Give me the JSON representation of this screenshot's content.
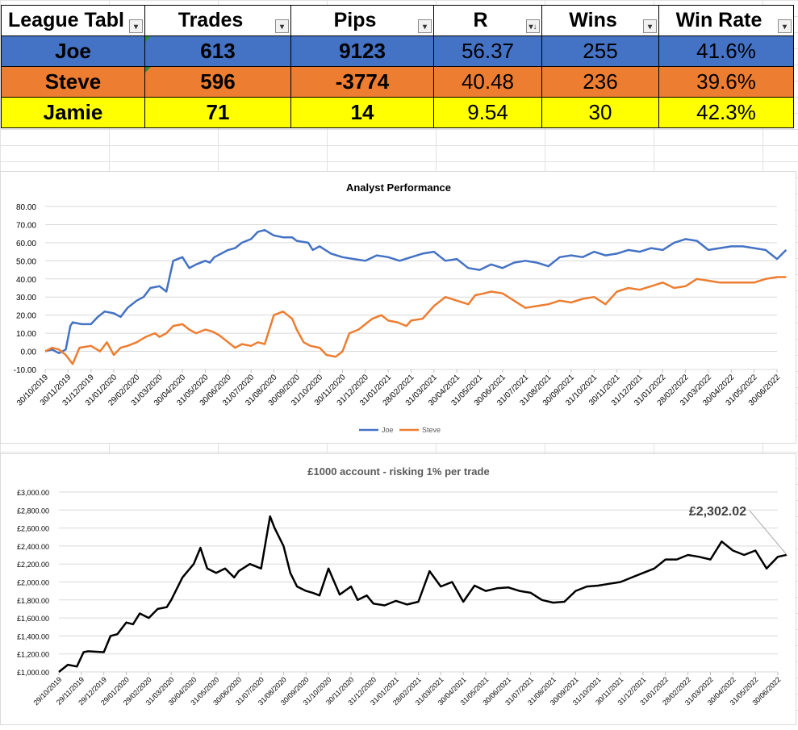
{
  "league_table": {
    "headers": [
      "League Tabl",
      "Trades",
      "Pips",
      "R",
      "Wins",
      "Win Rate"
    ],
    "rows": [
      {
        "name": "Joe",
        "trades": "613",
        "pips": "9123",
        "r": "56.37",
        "wins": "255",
        "win_rate": "41.6%"
      },
      {
        "name": "Steve",
        "trades": "596",
        "pips": "-3774",
        "r": "40.48",
        "wins": "236",
        "win_rate": "39.6%"
      },
      {
        "name": "Jamie",
        "trades": "71",
        "pips": "14",
        "r": "9.54",
        "wins": "30",
        "win_rate": "42.3%"
      }
    ]
  },
  "icons": [
    "filter-dropdown-icon",
    "sort-descending-icon",
    "green-triangle-icon"
  ],
  "colors": {
    "joe": "#4472c4",
    "steve": "#ed7d31",
    "jamie": "#ffff00",
    "account_line": "#000000"
  },
  "chart_data": [
    {
      "type": "line",
      "title": "Analyst Performance",
      "xlabel": "",
      "ylabel": "",
      "ylim": [
        -10,
        80
      ],
      "yticks": [
        "80.00",
        "70.00",
        "60.00",
        "50.00",
        "40.00",
        "30.00",
        "20.00",
        "10.00",
        "0.00",
        "-10.00"
      ],
      "x_tick_labels": [
        "30/10/2019",
        "30/11/2019",
        "31/12/2019",
        "31/01/2020",
        "29/02/2020",
        "31/03/2020",
        "30/04/2020",
        "31/05/2020",
        "30/06/2020",
        "31/07/2020",
        "31/08/2020",
        "30/09/2020",
        "31/10/2020",
        "30/11/2020",
        "31/12/2020",
        "31/01/2021",
        "28/02/2021",
        "31/03/2021",
        "30/04/2021",
        "31/05/2021",
        "30/06/2021",
        "31/07/2021",
        "31/08/2021",
        "30/09/2021",
        "31/10/2021",
        "30/11/2021",
        "31/12/2021",
        "31/01/2022",
        "28/02/2022",
        "31/03/2022",
        "30/04/2022",
        "31/05/2022",
        "30/06/2022"
      ],
      "grid": true,
      "legend": "bottom",
      "series": [
        {
          "name": "Joe",
          "color": "#4472c4",
          "x": [
            0,
            0.3,
            0.6,
            0.9,
            1.1,
            1.2,
            1.6,
            2,
            2.3,
            2.6,
            3,
            3.3,
            3.6,
            4,
            4.3,
            4.6,
            5,
            5.3,
            5.6,
            6,
            6.3,
            6.6,
            7,
            7.2,
            7.4,
            7.7,
            8,
            8.3,
            8.6,
            9,
            9.3,
            9.6,
            10,
            10.4,
            10.8,
            11,
            11.5,
            11.7,
            12,
            12.5,
            13,
            13.5,
            14,
            14.5,
            15,
            15.5,
            16,
            16.5,
            17,
            17.5,
            18,
            18.5,
            19,
            19.5,
            20,
            20.5,
            21,
            21.5,
            22,
            22.5,
            23,
            23.5,
            24,
            24.5,
            25,
            25.5,
            26,
            26.5,
            27,
            27.5,
            28,
            28.5,
            29,
            29.5,
            30,
            30.5,
            31,
            31.5,
            32,
            32.4
          ],
          "y": [
            0,
            1,
            -1,
            1,
            14,
            16,
            15,
            15,
            19,
            22,
            21,
            19,
            24,
            28,
            30,
            35,
            36,
            33,
            50,
            52,
            46,
            48,
            50,
            49,
            52,
            54,
            56,
            57,
            60,
            62,
            66,
            67,
            64,
            63,
            63,
            61,
            60,
            56,
            58,
            54,
            52,
            51,
            50,
            53,
            52,
            50,
            52,
            54,
            55,
            50,
            51,
            46,
            45,
            48,
            46,
            49,
            50,
            49,
            47,
            52,
            53,
            52,
            55,
            53,
            54,
            56,
            55,
            57,
            56,
            60,
            62,
            61,
            56,
            57,
            58,
            58,
            57,
            56,
            51,
            56
          ]
        },
        {
          "name": "Steve",
          "color": "#ed7d31",
          "x": [
            0,
            0.3,
            0.6,
            0.9,
            1.2,
            1.5,
            2,
            2.4,
            2.7,
            3,
            3.3,
            3.6,
            4,
            4.4,
            4.8,
            5,
            5.3,
            5.6,
            6,
            6.3,
            6.6,
            7,
            7.3,
            7.6,
            8,
            8.3,
            8.6,
            9,
            9.3,
            9.6,
            10,
            10.4,
            10.8,
            11,
            11.3,
            11.6,
            12,
            12.3,
            12.7,
            13,
            13.3,
            13.7,
            14,
            14.3,
            14.7,
            15,
            15.4,
            15.8,
            16,
            16.5,
            17,
            17.5,
            18,
            18.5,
            18.8,
            19.2,
            19.5,
            20,
            20.5,
            21,
            21.5,
            22,
            22.5,
            23,
            23.5,
            24,
            24.5,
            25,
            25.5,
            26,
            26.5,
            27,
            27.5,
            28,
            28.5,
            29,
            29.5,
            30,
            30.5,
            31,
            31.5,
            32,
            32.4
          ],
          "y": [
            0,
            2,
            1,
            -2,
            -7,
            2,
            3,
            0,
            5,
            -2,
            2,
            3,
            5,
            8,
            10,
            8,
            10,
            14,
            15,
            12,
            10,
            12,
            11,
            9,
            5,
            2,
            4,
            3,
            5,
            4,
            20,
            22,
            18,
            12,
            5,
            3,
            2,
            -2,
            -3,
            0,
            10,
            12,
            15,
            18,
            20,
            17,
            16,
            14,
            17,
            18,
            25,
            30,
            28,
            26,
            31,
            32,
            33,
            32,
            28,
            24,
            25,
            26,
            28,
            27,
            29,
            30,
            26,
            33,
            35,
            34,
            36,
            38,
            35,
            36,
            40,
            39,
            38,
            38,
            38,
            38,
            40,
            41,
            41
          ]
        }
      ]
    },
    {
      "type": "line",
      "title": "£1000 account - risking 1% per trade",
      "xlabel": "",
      "ylabel": "",
      "ylim": [
        1000,
        3000
      ],
      "yticks": [
        "£3,000.00",
        "£2,800.00",
        "£2,600.00",
        "£2,400.00",
        "£2,200.00",
        "£2,000.00",
        "£1,800.00",
        "£1,600.00",
        "£1,400.00",
        "£1,200.00",
        "£1,000.00"
      ],
      "x_tick_labels": [
        "29/10/2019",
        "29/11/2019",
        "29/12/2019",
        "29/01/2020",
        "29/02/2020",
        "31/03/2020",
        "30/04/2020",
        "31/05/2020",
        "30/06/2020",
        "31/07/2020",
        "31/08/2020",
        "30/09/2020",
        "31/10/2020",
        "30/11/2020",
        "31/12/2020",
        "31/01/2021",
        "28/02/2021",
        "31/03/2021",
        "30/04/2021",
        "31/05/2021",
        "30/06/2021",
        "31/07/2021",
        "31/08/2021",
        "30/09/2021",
        "31/10/2021",
        "30/11/2021",
        "31/12/2021",
        "31/01/2022",
        "28/02/2022",
        "31/03/2022",
        "30/04/2022",
        "31/05/2022",
        "30/06/2022"
      ],
      "grid": true,
      "annotation": "£2,302.02",
      "series": [
        {
          "name": "",
          "color": "#000000",
          "x": [
            0,
            0.4,
            0.8,
            1.1,
            1.3,
            2,
            2.3,
            2.6,
            3,
            3.3,
            3.6,
            4,
            4.4,
            4.8,
            5,
            5.5,
            6,
            6.3,
            6.6,
            7,
            7.4,
            7.8,
            8,
            8.5,
            9,
            9.4,
            9.6,
            10,
            10.3,
            10.6,
            11,
            11.3,
            11.6,
            12,
            12.5,
            13,
            13.3,
            13.7,
            14,
            14.5,
            15,
            15.5,
            16,
            16.5,
            17,
            17.5,
            18,
            18.5,
            19,
            19.5,
            20,
            20.5,
            21,
            21.5,
            22,
            22.5,
            23,
            23.5,
            24,
            24.5,
            25,
            25.5,
            26,
            26.5,
            27,
            27.5,
            28,
            28.5,
            29,
            29.5,
            30,
            30.5,
            31,
            31.5,
            32,
            32.4
          ],
          "y": [
            1000,
            1080,
            1060,
            1220,
            1230,
            1220,
            1400,
            1420,
            1550,
            1530,
            1650,
            1600,
            1700,
            1720,
            1800,
            2050,
            2200,
            2380,
            2150,
            2100,
            2150,
            2050,
            2120,
            2200,
            2150,
            2730,
            2600,
            2400,
            2100,
            1950,
            1900,
            1880,
            1850,
            2150,
            1860,
            1950,
            1800,
            1850,
            1760,
            1740,
            1790,
            1750,
            1780,
            2120,
            1950,
            2000,
            1780,
            1960,
            1900,
            1930,
            1940,
            1900,
            1880,
            1800,
            1770,
            1780,
            1900,
            1950,
            1960,
            1980,
            2000,
            2050,
            2100,
            2150,
            2250,
            2250,
            2300,
            2280,
            2250,
            2450,
            2350,
            2300,
            2350,
            2150,
            2280,
            2302
          ]
        }
      ]
    }
  ]
}
